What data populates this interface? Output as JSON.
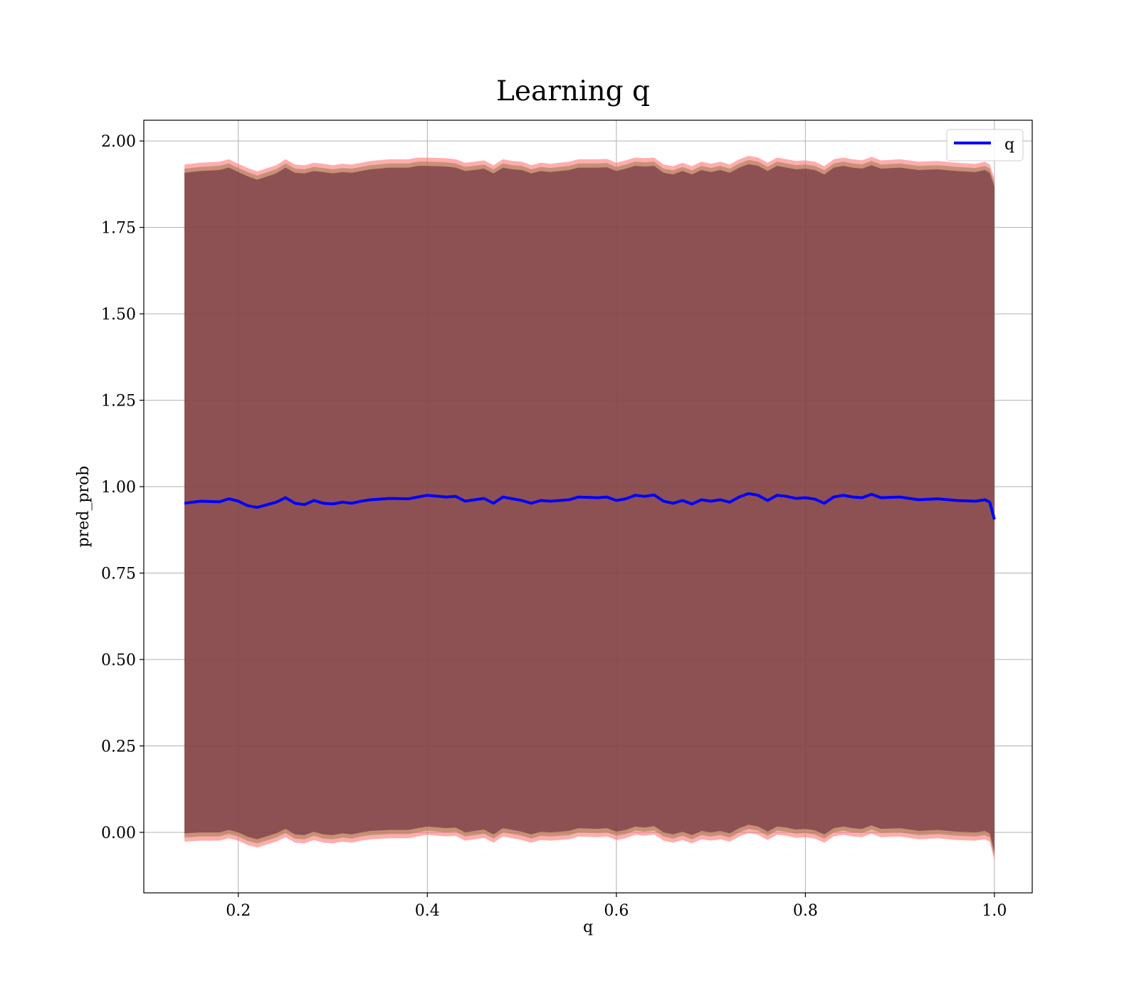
{
  "chart_data": {
    "type": "line",
    "title": "Learning q",
    "xlabel": "q",
    "ylabel": "pred_prob",
    "xlim": [
      0.1,
      1.04
    ],
    "ylim": [
      -0.175,
      2.06
    ],
    "xticks": [
      0.2,
      0.4,
      0.6,
      0.8,
      1.0
    ],
    "xtick_labels": [
      "0.2",
      "0.4",
      "0.6",
      "0.8",
      "1.0"
    ],
    "yticks": [
      0.0,
      0.25,
      0.5,
      0.75,
      1.0,
      1.25,
      1.5,
      1.75,
      2.0
    ],
    "ytick_labels": [
      "0.00",
      "0.25",
      "0.50",
      "0.75",
      "1.00",
      "1.25",
      "1.50",
      "1.75",
      "2.00"
    ],
    "grid": true,
    "legend": {
      "position": "top-right",
      "entries": [
        "q"
      ]
    },
    "colors": {
      "line": "#0000ff",
      "band_inner": "#6b2a3d",
      "band_outer": "#ff6a6a",
      "grid": "#b0b0b0"
    },
    "series": [
      {
        "name": "q",
        "x": [
          0.143,
          0.16,
          0.18,
          0.19,
          0.2,
          0.21,
          0.22,
          0.24,
          0.25,
          0.26,
          0.27,
          0.28,
          0.29,
          0.3,
          0.31,
          0.32,
          0.33,
          0.34,
          0.36,
          0.38,
          0.39,
          0.4,
          0.42,
          0.43,
          0.44,
          0.45,
          0.46,
          0.47,
          0.48,
          0.49,
          0.5,
          0.51,
          0.52,
          0.53,
          0.55,
          0.56,
          0.58,
          0.59,
          0.6,
          0.61,
          0.62,
          0.63,
          0.64,
          0.65,
          0.66,
          0.67,
          0.68,
          0.69,
          0.7,
          0.71,
          0.72,
          0.73,
          0.74,
          0.75,
          0.76,
          0.77,
          0.78,
          0.79,
          0.8,
          0.81,
          0.82,
          0.83,
          0.84,
          0.85,
          0.86,
          0.87,
          0.88,
          0.9,
          0.92,
          0.94,
          0.96,
          0.98,
          0.99,
          0.995,
          1.0
        ],
        "y": [
          0.952,
          0.958,
          0.956,
          0.965,
          0.958,
          0.945,
          0.94,
          0.955,
          0.968,
          0.952,
          0.948,
          0.96,
          0.952,
          0.95,
          0.955,
          0.952,
          0.958,
          0.962,
          0.966,
          0.965,
          0.97,
          0.975,
          0.97,
          0.972,
          0.958,
          0.962,
          0.966,
          0.952,
          0.97,
          0.965,
          0.96,
          0.952,
          0.96,
          0.958,
          0.962,
          0.97,
          0.968,
          0.97,
          0.96,
          0.965,
          0.975,
          0.972,
          0.976,
          0.958,
          0.952,
          0.96,
          0.95,
          0.962,
          0.958,
          0.962,
          0.955,
          0.97,
          0.98,
          0.975,
          0.96,
          0.975,
          0.972,
          0.966,
          0.968,
          0.964,
          0.952,
          0.97,
          0.975,
          0.97,
          0.968,
          0.978,
          0.968,
          0.97,
          0.962,
          0.965,
          0.96,
          0.958,
          0.962,
          0.955,
          0.905
        ],
        "band_upper": [
          1.92,
          1.925,
          1.928,
          1.935,
          1.922,
          1.91,
          1.9,
          1.918,
          1.935,
          1.92,
          1.918,
          1.925,
          1.922,
          1.918,
          1.922,
          1.92,
          1.925,
          1.93,
          1.935,
          1.935,
          1.94,
          1.94,
          1.938,
          1.935,
          1.925,
          1.928,
          1.932,
          1.918,
          1.935,
          1.93,
          1.928,
          1.918,
          1.925,
          1.922,
          1.928,
          1.935,
          1.935,
          1.936,
          1.925,
          1.932,
          1.94,
          1.938,
          1.94,
          1.92,
          1.915,
          1.925,
          1.915,
          1.928,
          1.922,
          1.928,
          1.92,
          1.935,
          1.945,
          1.94,
          1.925,
          1.94,
          1.935,
          1.93,
          1.932,
          1.928,
          1.915,
          1.935,
          1.94,
          1.935,
          1.932,
          1.942,
          1.932,
          1.935,
          1.928,
          1.93,
          1.925,
          1.922,
          1.928,
          1.92,
          1.88
        ],
        "band_lower": [
          -0.015,
          -0.012,
          -0.012,
          -0.005,
          -0.012,
          -0.025,
          -0.032,
          -0.015,
          -0.002,
          -0.018,
          -0.02,
          -0.01,
          -0.018,
          -0.02,
          -0.015,
          -0.018,
          -0.012,
          -0.008,
          -0.005,
          -0.005,
          0.0,
          0.005,
          0.0,
          0.002,
          -0.012,
          -0.008,
          -0.004,
          -0.018,
          0.0,
          -0.005,
          -0.01,
          -0.018,
          -0.01,
          -0.012,
          -0.008,
          0.0,
          -0.002,
          0.0,
          -0.01,
          -0.005,
          0.005,
          0.002,
          0.006,
          -0.012,
          -0.018,
          -0.01,
          -0.02,
          -0.008,
          -0.012,
          -0.008,
          -0.015,
          0.0,
          0.01,
          0.005,
          -0.01,
          0.005,
          0.002,
          -0.004,
          -0.002,
          -0.006,
          -0.018,
          0.0,
          0.005,
          0.0,
          -0.002,
          0.008,
          -0.002,
          0.0,
          -0.008,
          -0.005,
          -0.01,
          -0.012,
          -0.008,
          -0.015,
          -0.07
        ]
      }
    ]
  }
}
